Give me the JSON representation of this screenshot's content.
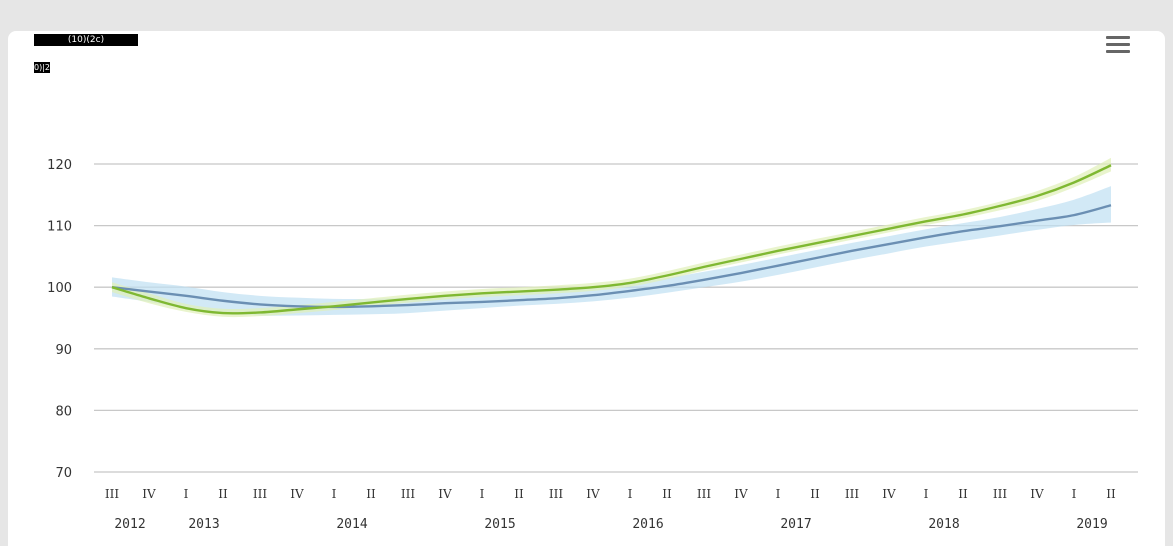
{
  "legend": {
    "box_label": "(10)(2c)",
    "box2_label": "0)|2"
  },
  "chart_data": {
    "type": "line",
    "title": "",
    "xlabel": "",
    "ylabel": "",
    "ylim": [
      70,
      120
    ],
    "yticks": [
      70,
      80,
      90,
      100,
      110,
      120
    ],
    "grid": true,
    "quarter_labels": [
      "III",
      "IV",
      "I",
      "II",
      "III",
      "IV",
      "I",
      "II",
      "III",
      "IV",
      "I",
      "II",
      "III",
      "IV",
      "I",
      "II",
      "III",
      "IV",
      "I",
      "II",
      "III",
      "IV",
      "I",
      "II",
      "III",
      "IV",
      "I",
      "II"
    ],
    "year_labels": [
      {
        "label": "2012",
        "start": 0
      },
      {
        "label": "2013",
        "start": 2
      },
      {
        "label": "2014",
        "start": 6
      },
      {
        "label": "2015",
        "start": 10
      },
      {
        "label": "2016",
        "start": 14
      },
      {
        "label": "2017",
        "start": 18
      },
      {
        "label": "2018",
        "start": 22
      },
      {
        "label": "2019",
        "start": 26
      }
    ],
    "series": [
      {
        "color": "#6b8fb3",
        "band_color": "#bfe0f2",
        "values": [
          100,
          99.3,
          98.6,
          97.8,
          97.2,
          96.9,
          96.8,
          96.9,
          97.1,
          97.4,
          97.6,
          97.9,
          98.2,
          98.7,
          99.4,
          100.2,
          101.2,
          102.3,
          103.5,
          104.7,
          105.9,
          107.0,
          108.1,
          109.1,
          109.9,
          110.8,
          111.7,
          113.3
        ],
        "band_low": [
          98.5,
          97.6,
          96.6,
          95.9,
          95.4,
          95.4,
          95.5,
          95.6,
          95.8,
          96.2,
          96.6,
          97.0,
          97.3,
          97.7,
          98.3,
          99.1,
          100.0,
          100.9,
          102.0,
          103.2,
          104.4,
          105.5,
          106.6,
          107.5,
          108.4,
          109.3,
          110.1,
          110.5
        ],
        "band_high": [
          101.6,
          100.8,
          100.1,
          99.2,
          98.6,
          98.3,
          98.1,
          98.1,
          98.3,
          98.6,
          98.9,
          99.2,
          99.5,
          100.0,
          100.7,
          101.5,
          102.5,
          103.6,
          104.8,
          106.0,
          107.2,
          108.3,
          109.4,
          110.4,
          111.4,
          112.7,
          114.2,
          116.4
        ]
      },
      {
        "color": "#7fb832",
        "band_color": "#dff0b8",
        "values": [
          100,
          98.2,
          96.6,
          95.8,
          95.9,
          96.4,
          96.9,
          97.5,
          98.1,
          98.6,
          99.0,
          99.3,
          99.6,
          100.0,
          100.7,
          101.9,
          103.3,
          104.6,
          105.9,
          107.1,
          108.3,
          109.5,
          110.7,
          111.8,
          113.2,
          114.8,
          117.0,
          119.8
        ],
        "band_low": [
          99.2,
          97.4,
          96.0,
          95.2,
          95.3,
          95.8,
          96.3,
          96.9,
          97.5,
          98.0,
          98.4,
          98.7,
          99.0,
          99.4,
          100.1,
          101.3,
          102.7,
          104.0,
          105.3,
          106.5,
          107.7,
          108.9,
          110.1,
          111.2,
          112.5,
          114.0,
          116.2,
          118.8
        ],
        "band_high": [
          100.8,
          99.0,
          97.3,
          96.5,
          96.6,
          97.1,
          97.6,
          98.2,
          98.8,
          99.3,
          99.7,
          100.0,
          100.3,
          100.7,
          101.4,
          102.6,
          104.0,
          105.3,
          106.6,
          107.8,
          109.0,
          110.2,
          111.4,
          112.5,
          113.9,
          115.6,
          117.9,
          121.0
        ]
      }
    ]
  },
  "icons": {
    "menu": "hamburger-menu-icon"
  }
}
